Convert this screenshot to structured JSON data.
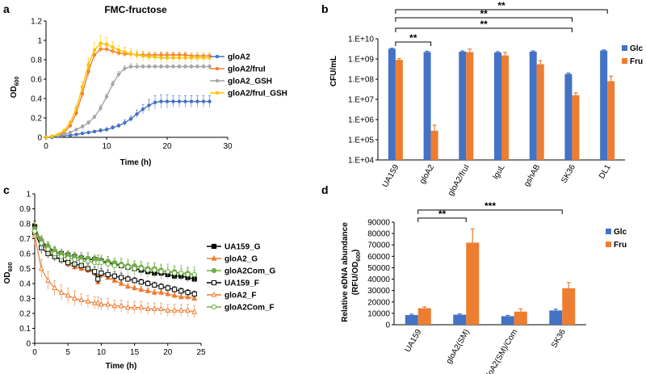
{
  "colors": {
    "glc": "#4472c4",
    "fru": "#ed7d31",
    "gsh": "#a5a5a5",
    "yellow": "#ffc000",
    "green": "#70ad47",
    "black": "#000000"
  },
  "panel_letters": [
    "a",
    "b",
    "c",
    "d"
  ],
  "chart_data": [
    {
      "id": "a",
      "type": "line",
      "title": "FMC-fructose",
      "xlabel": "Time (h)",
      "ylabel_main": "OD",
      "ylabel_sub": "600",
      "xlim": [
        0,
        30
      ],
      "ylim": [
        0,
        1.2
      ],
      "x_ticks": [
        0,
        10,
        20,
        30
      ],
      "y_ticks": [
        0,
        0.2,
        0.4,
        0.6,
        0.8,
        1,
        1.2
      ],
      "y_tick_labels": [
        "0",
        "0.2",
        "0.4",
        "0.6",
        "0.8",
        "1",
        "1.2"
      ],
      "x": [
        0,
        1,
        2,
        3,
        4,
        5,
        6,
        7,
        8,
        9,
        10,
        11,
        12,
        13,
        14,
        15,
        16,
        17,
        18,
        19,
        20,
        21,
        22,
        23,
        24,
        25,
        26,
        27
      ],
      "series": [
        {
          "name": "gloA2",
          "color": "#4472c4",
          "values": [
            0,
            0,
            0.01,
            0.02,
            0.02,
            0.03,
            0.04,
            0.05,
            0.06,
            0.07,
            0.08,
            0.1,
            0.12,
            0.15,
            0.19,
            0.24,
            0.29,
            0.33,
            0.36,
            0.37,
            0.37,
            0.37,
            0.37,
            0.37,
            0.37,
            0.37,
            0.37,
            0.37
          ],
          "errors": [
            0,
            0,
            0,
            0,
            0.01,
            0.01,
            0.01,
            0.01,
            0.01,
            0.02,
            0.02,
            0.02,
            0.02,
            0.03,
            0.03,
            0.04,
            0.05,
            0.06,
            0.07,
            0.07,
            0.07,
            0.06,
            0.06,
            0.06,
            0.06,
            0.06,
            0.06,
            0.06
          ]
        },
        {
          "name": "gloA2/fruI",
          "color": "#ed7d31",
          "values": [
            0,
            0.01,
            0.02,
            0.05,
            0.12,
            0.25,
            0.45,
            0.68,
            0.85,
            0.91,
            0.91,
            0.89,
            0.87,
            0.86,
            0.86,
            0.85,
            0.85,
            0.85,
            0.85,
            0.85,
            0.85,
            0.85,
            0.85,
            0.85,
            0.84,
            0.84,
            0.84,
            0.84
          ],
          "errors": [
            0,
            0,
            0,
            0.01,
            0.02,
            0.03,
            0.04,
            0.05,
            0.04,
            0.03,
            0.03,
            0.03,
            0.03,
            0.03,
            0.03,
            0.03,
            0.03,
            0.03,
            0.03,
            0.03,
            0.03,
            0.03,
            0.03,
            0.03,
            0.03,
            0.03,
            0.03,
            0.03
          ]
        },
        {
          "name": "gloA2_GSH",
          "color": "#a5a5a5",
          "values": [
            0,
            0.01,
            0.02,
            0.03,
            0.05,
            0.08,
            0.11,
            0.15,
            0.21,
            0.3,
            0.42,
            0.55,
            0.65,
            0.71,
            0.73,
            0.73,
            0.73,
            0.73,
            0.73,
            0.73,
            0.73,
            0.73,
            0.73,
            0.73,
            0.73,
            0.73,
            0.73,
            0.73
          ],
          "errors": [
            0,
            0,
            0,
            0.01,
            0.01,
            0.01,
            0.02,
            0.02,
            0.02,
            0.03,
            0.03,
            0.03,
            0.03,
            0.03,
            0.03,
            0.03,
            0.02,
            0.02,
            0.02,
            0.02,
            0.02,
            0.02,
            0.02,
            0.02,
            0.02,
            0.02,
            0.02,
            0.02
          ]
        },
        {
          "name": "gloA2/fruI_GSH",
          "color": "#ffc000",
          "values": [
            0,
            0.01,
            0.03,
            0.07,
            0.15,
            0.3,
            0.52,
            0.75,
            0.9,
            0.97,
            0.96,
            0.93,
            0.9,
            0.88,
            0.86,
            0.85,
            0.84,
            0.83,
            0.83,
            0.82,
            0.82,
            0.82,
            0.82,
            0.82,
            0.82,
            0.82,
            0.82,
            0.82
          ],
          "errors": [
            0,
            0,
            0,
            0.01,
            0.02,
            0.03,
            0.05,
            0.07,
            0.08,
            0.08,
            0.07,
            0.06,
            0.05,
            0.05,
            0.05,
            0.05,
            0.05,
            0.05,
            0.05,
            0.05,
            0.05,
            0.05,
            0.05,
            0.05,
            0.05,
            0.05,
            0.05,
            0.05
          ]
        }
      ],
      "legend": [
        "gloA2",
        "gloA2/fruI",
        "gloA2_GSH",
        "gloA2/fruI_GSH"
      ],
      "legend_position": "right"
    },
    {
      "id": "b",
      "type": "bar",
      "scale": "log",
      "ylabel": "CFU/mL",
      "categories": [
        "UA159",
        "gloA2",
        "gloA2/fruI",
        "lguL",
        "gshAB",
        "SK36",
        "DL1"
      ],
      "y_ticks": [
        10000.0,
        100000.0,
        1000000.0,
        10000000.0,
        100000000.0,
        1000000000.0,
        10000000000.0
      ],
      "y_tick_labels": [
        "1.E+04",
        "1.E+05",
        "1.E+06",
        "1.E+07",
        "1.E+08",
        "1.E+09",
        "1.E+10"
      ],
      "ylim": [
        10000.0,
        10000000000.0
      ],
      "series": [
        {
          "name": "Glc",
          "color": "#4472c4",
          "values": [
            3200000000.0,
            2200000000.0,
            2300000000.0,
            2100000000.0,
            2300000000.0,
            180000000.0,
            2600000000.0
          ],
          "errors": [
            200000000.0,
            200000000.0,
            200000000.0,
            200000000.0,
            200000000.0,
            20000000.0,
            200000000.0
          ]
        },
        {
          "name": "Fru",
          "color": "#ed7d31",
          "values": [
            900000000.0,
            280000.0,
            2200000000.0,
            1500000000.0,
            550000000.0,
            16000000.0,
            80000000.0
          ],
          "errors": [
            150000000.0,
            250000.0,
            900000000.0,
            600000000.0,
            280000000.0,
            5000000.0,
            60000000.0
          ]
        }
      ],
      "significance": [
        {
          "from": "UA159",
          "to": "gloA2",
          "label": "**"
        },
        {
          "from": "UA159",
          "to": "SK36",
          "label": "**"
        },
        {
          "from": "UA159",
          "to": "DL1",
          "label": "**"
        },
        {
          "from": "UA159",
          "to": "SK36",
          "label": "**"
        }
      ],
      "legend": [
        "Glc",
        "Fru"
      ],
      "legend_position": "top-right"
    },
    {
      "id": "c",
      "type": "line",
      "xlabel": "Time (h)",
      "ylabel_main": "OD",
      "ylabel_sub": "600",
      "xlim": [
        0,
        25
      ],
      "ylim": [
        0,
        1
      ],
      "x_ticks": [
        0,
        5,
        10,
        15,
        20,
        25
      ],
      "y_ticks": [
        0,
        0.1,
        0.2,
        0.3,
        0.4,
        0.5,
        0.6,
        0.7,
        0.8,
        0.9,
        1
      ],
      "y_tick_labels": [
        "0",
        "0.1",
        "0.2",
        "0.3",
        "0.4",
        "0.5",
        "0.6",
        "0.7",
        "0.8",
        "0.9",
        "1"
      ],
      "x": [
        0,
        1,
        2,
        3,
        4,
        5,
        6,
        7,
        8,
        9,
        9.5,
        10,
        11,
        12,
        13,
        14,
        15,
        16,
        17,
        18,
        19,
        20,
        21,
        22,
        23,
        24
      ],
      "series": [
        {
          "name": "UA159_G",
          "color": "#000000",
          "marker": "square-filled",
          "values": [
            0.78,
            0.68,
            0.64,
            0.61,
            0.6,
            0.59,
            0.58,
            0.57,
            0.56,
            0.56,
            0.55,
            0.55,
            0.54,
            0.53,
            0.52,
            0.51,
            0.5,
            0.49,
            0.48,
            0.47,
            0.47,
            0.46,
            0.45,
            0.45,
            0.44,
            0.43
          ],
          "errors": [
            0.04,
            0.03,
            0.03,
            0.03,
            0.02,
            0.02,
            0.02,
            0.02,
            0.02,
            0.02,
            0.02,
            0.02,
            0.02,
            0.02,
            0.02,
            0.02,
            0.02,
            0.02,
            0.02,
            0.02,
            0.02,
            0.02,
            0.02,
            0.02,
            0.02,
            0.02
          ]
        },
        {
          "name": "gloA2_G",
          "color": "#ed7d31",
          "marker": "triangle-filled",
          "values": [
            0.76,
            0.66,
            0.62,
            0.58,
            0.56,
            0.53,
            0.51,
            0.5,
            0.49,
            0.47,
            0.41,
            0.46,
            0.44,
            0.42,
            0.4,
            0.38,
            0.37,
            0.36,
            0.35,
            0.34,
            0.34,
            0.33,
            0.32,
            0.31,
            0.31,
            0.3
          ],
          "errors": [
            0.04,
            0.03,
            0.03,
            0.03,
            0.02,
            0.02,
            0.02,
            0.02,
            0.02,
            0.02,
            0.02,
            0.02,
            0.02,
            0.02,
            0.02,
            0.02,
            0.02,
            0.02,
            0.02,
            0.02,
            0.02,
            0.02,
            0.02,
            0.02,
            0.02,
            0.02
          ]
        },
        {
          "name": "gloA2Com_G",
          "color": "#70ad47",
          "marker": "circle-filled",
          "values": [
            0.77,
            0.69,
            0.65,
            0.62,
            0.6,
            0.59,
            0.58,
            0.57,
            0.57,
            0.56,
            0.56,
            0.55,
            0.55,
            0.54,
            0.53,
            0.52,
            0.52,
            0.51,
            0.5,
            0.5,
            0.49,
            0.48,
            0.48,
            0.47,
            0.47,
            0.46
          ],
          "errors": [
            0.04,
            0.03,
            0.03,
            0.03,
            0.03,
            0.03,
            0.03,
            0.03,
            0.03,
            0.03,
            0.03,
            0.03,
            0.03,
            0.03,
            0.03,
            0.03,
            0.03,
            0.03,
            0.03,
            0.03,
            0.03,
            0.03,
            0.03,
            0.03,
            0.03,
            0.03
          ]
        },
        {
          "name": "UA159_F",
          "color": "#000000",
          "marker": "square-open",
          "values": [
            0.74,
            0.64,
            0.6,
            0.58,
            0.56,
            0.54,
            0.53,
            0.52,
            0.5,
            0.48,
            0.43,
            0.47,
            0.46,
            0.45,
            0.44,
            0.43,
            0.42,
            0.41,
            0.4,
            0.39,
            0.38,
            0.37,
            0.36,
            0.35,
            0.34,
            0.33
          ],
          "errors": [
            0.04,
            0.04,
            0.03,
            0.03,
            0.03,
            0.03,
            0.03,
            0.03,
            0.03,
            0.03,
            0.03,
            0.03,
            0.03,
            0.03,
            0.03,
            0.02,
            0.02,
            0.02,
            0.02,
            0.02,
            0.02,
            0.02,
            0.02,
            0.02,
            0.02,
            0.02
          ]
        },
        {
          "name": "gloA2_F",
          "color": "#ed7d31",
          "marker": "triangle-open",
          "values": [
            0.72,
            0.5,
            0.42,
            0.37,
            0.34,
            0.32,
            0.3,
            0.29,
            0.28,
            0.27,
            0.27,
            0.26,
            0.26,
            0.25,
            0.25,
            0.24,
            0.24,
            0.24,
            0.23,
            0.23,
            0.23,
            0.22,
            0.22,
            0.22,
            0.22,
            0.21
          ],
          "errors": [
            0.06,
            0.06,
            0.06,
            0.05,
            0.05,
            0.05,
            0.05,
            0.04,
            0.04,
            0.04,
            0.04,
            0.04,
            0.04,
            0.04,
            0.04,
            0.04,
            0.04,
            0.04,
            0.04,
            0.04,
            0.04,
            0.04,
            0.04,
            0.04,
            0.04,
            0.04
          ]
        },
        {
          "name": "gloA2Com_F",
          "color": "#70ad47",
          "marker": "circle-open",
          "values": [
            0.75,
            0.67,
            0.63,
            0.6,
            0.58,
            0.57,
            0.56,
            0.55,
            0.55,
            0.54,
            0.54,
            0.54,
            0.53,
            0.52,
            0.52,
            0.51,
            0.5,
            0.5,
            0.49,
            0.49,
            0.48,
            0.48,
            0.47,
            0.47,
            0.46,
            0.46
          ],
          "errors": [
            0.06,
            0.05,
            0.05,
            0.05,
            0.05,
            0.05,
            0.05,
            0.06,
            0.06,
            0.05,
            0.05,
            0.05,
            0.05,
            0.05,
            0.05,
            0.05,
            0.05,
            0.05,
            0.05,
            0.05,
            0.05,
            0.05,
            0.05,
            0.05,
            0.05,
            0.05
          ]
        }
      ],
      "legend": [
        "UA159_G",
        "gloA2_G",
        "gloA2Com_G",
        "UA159_F",
        "gloA2_F",
        "gloA2Com_F"
      ],
      "legend_position": "right"
    },
    {
      "id": "d",
      "type": "bar",
      "ylabel_line1": "Relative eDNA abundance",
      "ylabel_line2_main": "(RFU/OD",
      "ylabel_line2_sub": "600",
      "ylabel_line2_end": ")",
      "categories": [
        "UA159",
        "gloA2(SM)",
        "gloA2(SM)/Com",
        "SK36"
      ],
      "ylim": [
        0,
        90000
      ],
      "y_ticks": [
        0,
        10000,
        20000,
        30000,
        40000,
        50000,
        60000,
        70000,
        80000,
        90000
      ],
      "y_tick_labels": [
        "0",
        "10000",
        "20000",
        "30000",
        "40000",
        "50000",
        "60000",
        "70000",
        "80000",
        "90000"
      ],
      "series": [
        {
          "name": "Glc",
          "color": "#4472c4",
          "values": [
            8500,
            8800,
            7500,
            12500
          ],
          "errors": [
            800,
            700,
            700,
            1200
          ]
        },
        {
          "name": "Fru",
          "color": "#ed7d31",
          "values": [
            14500,
            72000,
            11500,
            32000
          ],
          "errors": [
            1200,
            12000,
            2500,
            5000
          ]
        }
      ],
      "significance": [
        {
          "from": "UA159",
          "to": "gloA2(SM)",
          "label": "**"
        },
        {
          "from": "UA159",
          "to": "SK36",
          "label": "***"
        }
      ],
      "legend": [
        "Glc",
        "Fru"
      ],
      "legend_position": "top-right"
    }
  ]
}
